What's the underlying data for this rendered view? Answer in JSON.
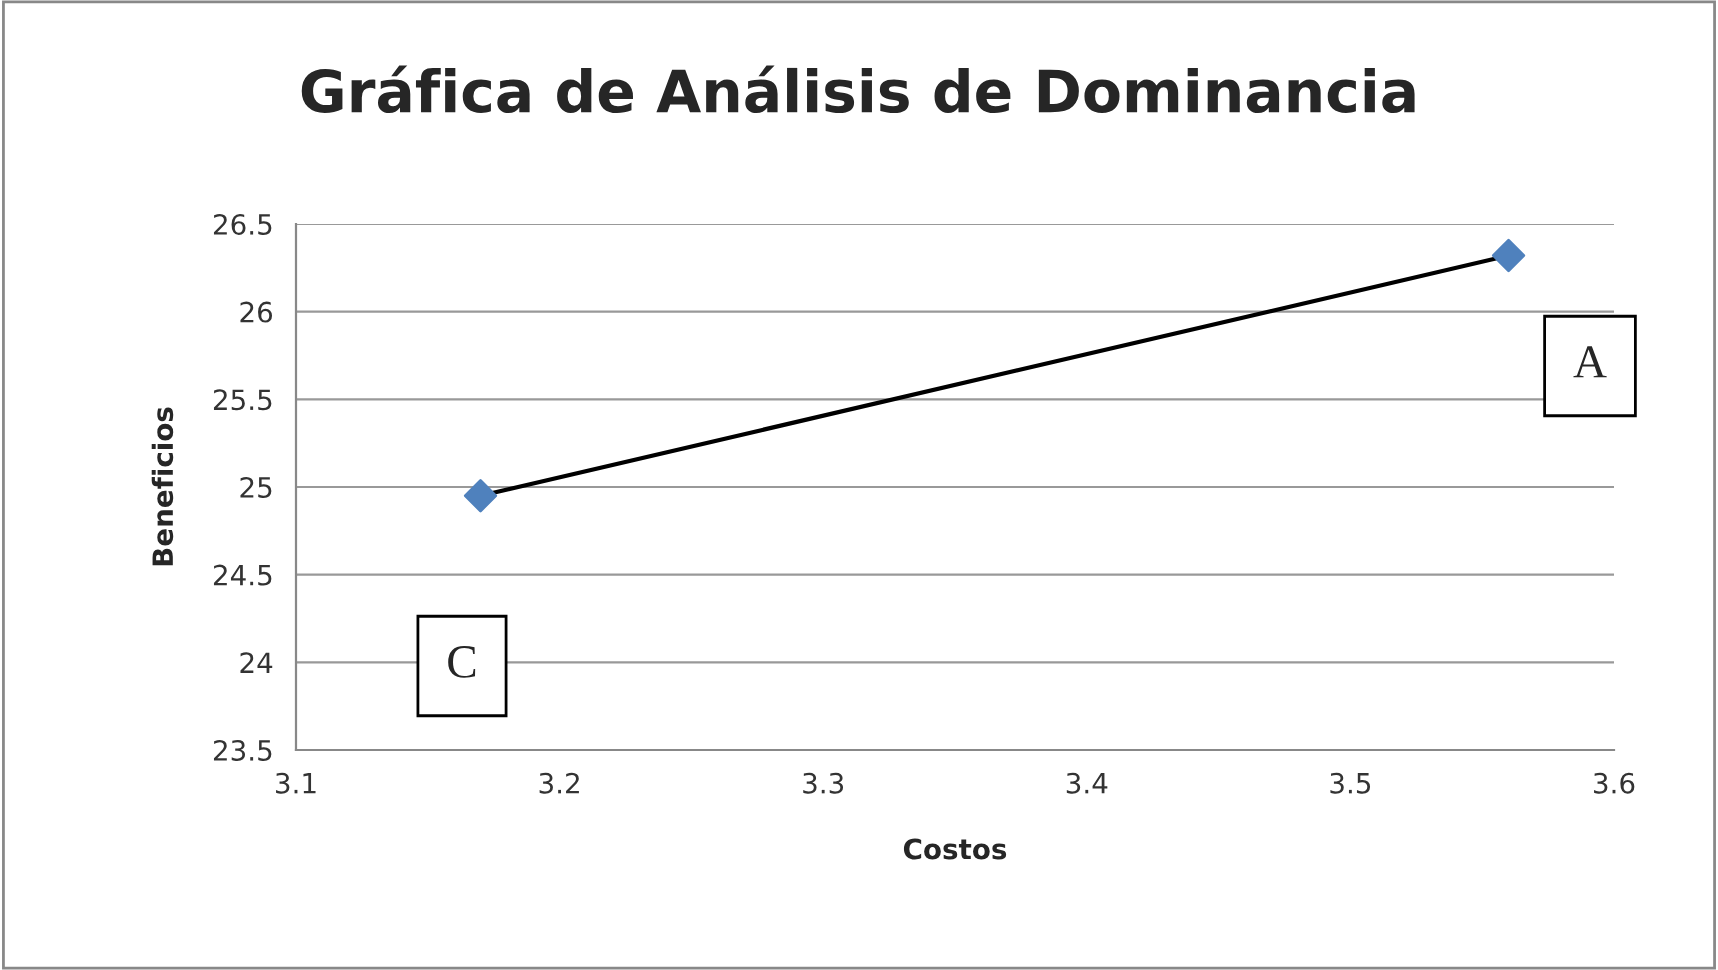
{
  "chart_data": {
    "type": "line",
    "title": "Gráfica de Análisis de Dominancia",
    "xlabel": "Costos",
    "ylabel": "Beneficios",
    "x": [
      3.17,
      3.56
    ],
    "series": [
      {
        "color": "#000000",
        "values": [
          24.95,
          26.32
        ],
        "marker": "none"
      },
      {
        "type": "scatter",
        "color": "#4f81bd",
        "values": [
          24.95,
          26.32
        ],
        "marker": "diamond"
      }
    ],
    "annotations": [
      "C",
      "A"
    ],
    "xlim": [
      3.1,
      3.6
    ],
    "xticks": [
      3.1,
      3.2,
      3.3,
      3.4,
      3.5,
      3.6
    ],
    "ylim": [
      23.5,
      26.5
    ],
    "yticks": [
      23.5,
      24,
      24.5,
      25,
      25.5,
      26,
      26.5
    ],
    "grid": "y",
    "legend": false
  }
}
